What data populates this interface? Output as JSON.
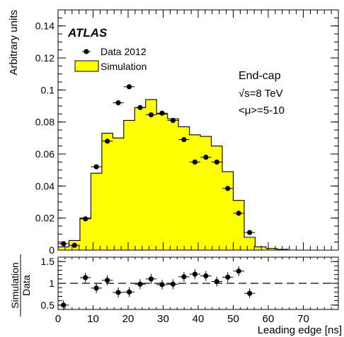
{
  "chart_data": [
    {
      "type": "bar",
      "panel": "main",
      "experiment_label": "ATLAS",
      "annotations": [
        "End-cap",
        "√s=8 TeV",
        "<μ>=5-10"
      ],
      "xlabel": "Leading edge [ns]",
      "ylabel": "Arbitrary units",
      "xlim": [
        0,
        80
      ],
      "ylim": [
        0,
        0.15
      ],
      "x_bin_width": 3.125,
      "y_ticks": [
        "0",
        "0.02",
        "0.04",
        "0.06",
        "0.08",
        "0.1",
        "0.12",
        "0.14"
      ],
      "legend_placement": "top-left",
      "series": [
        {
          "name": "Simulation",
          "style": "histogram",
          "color": "#ffff00",
          "bin_edges": [
            0,
            3.125,
            6.25,
            9.375,
            12.5,
            15.625,
            18.75,
            21.875,
            25,
            28.125,
            31.25,
            34.375,
            37.5,
            40.625,
            43.75,
            46.875,
            50,
            53.125,
            56.25,
            59.375,
            62.5,
            65.625,
            68.75,
            71.875,
            75,
            78.125
          ],
          "values": [
            0.002,
            0.006,
            0.02,
            0.048,
            0.073,
            0.07,
            0.081,
            0.089,
            0.094,
            0.085,
            0.082,
            0.077,
            0.072,
            0.071,
            0.065,
            0.049,
            0.031,
            0.008,
            0.002,
            0.001,
            0.0005,
            0,
            0,
            0,
            0
          ]
        },
        {
          "name": "Data 2012",
          "style": "points",
          "color": "#000000",
          "x": [
            1.5625,
            4.6875,
            7.8125,
            10.9375,
            14.0625,
            17.1875,
            20.3125,
            23.4375,
            26.5625,
            29.6875,
            32.8125,
            35.9375,
            39.0625,
            42.1875,
            45.3125,
            48.4375,
            51.5625,
            54.6875
          ],
          "values": [
            0.004,
            0.003,
            0.0195,
            0.052,
            0.068,
            0.092,
            0.102,
            0.089,
            0.0845,
            0.0855,
            0.081,
            0.069,
            0.055,
            0.058,
            0.055,
            0.0385,
            0.023,
            0.011
          ]
        }
      ]
    },
    {
      "type": "scatter",
      "panel": "ratio",
      "ylabel_numerator": "Simulation",
      "ylabel_denominator": "Data",
      "xlabel": "Leading edge [ns]",
      "xlim": [
        0,
        80
      ],
      "ylim": [
        0.4,
        1.6
      ],
      "x_ticks": [
        "0",
        "10",
        "20",
        "30",
        "40",
        "50",
        "60",
        "70"
      ],
      "y_ticks": [
        "0.5",
        "1",
        "1.5"
      ],
      "reference_line": 1,
      "series": [
        {
          "name": "Simulation/Data",
          "x": [
            1.5625,
            7.8125,
            10.9375,
            14.0625,
            17.1875,
            20.3125,
            23.4375,
            26.5625,
            29.6875,
            32.8125,
            35.9375,
            39.0625,
            42.1875,
            45.3125,
            48.4375,
            51.5625,
            54.6875
          ],
          "values": [
            0.5,
            1.13,
            0.89,
            1.07,
            0.79,
            0.8,
            0.98,
            1.1,
            0.97,
            0.98,
            1.15,
            1.21,
            1.17,
            1.04,
            1.14,
            1.28,
            0.77
          ]
        }
      ]
    }
  ]
}
